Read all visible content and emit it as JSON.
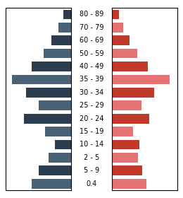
{
  "chart_data": {
    "type": "bar",
    "orientation": "horizontal",
    "tick_labels": "y",
    "categories": [
      "80 - 89",
      "70 - 79",
      "60 - 69",
      "50 - 59",
      "40 - 49",
      "35 - 39",
      "30 - 34",
      "25 - 29",
      "20 - 24",
      "15 - 19",
      "10 - 14",
      "2 - 5",
      "5 - 9",
      "0.4"
    ],
    "series": [
      {
        "values": [
          1.0,
          1.6,
          2.4,
          3.4,
          4.8,
          7.2,
          5.5,
          4.0,
          5.8,
          3.2,
          2.0,
          2.8,
          4.0,
          4.8
        ],
        "colors": [
          "#2b3d4f",
          "#4a6275",
          "#2b3d4f",
          "#4a6275",
          "#2b3d4f",
          "#4a6275",
          "#2b3d4f",
          "#4a6275",
          "#2b3d4f",
          "#4a6275",
          "#2b3d4f",
          "#4a6275",
          "#2b3d4f",
          "#4a6275"
        ]
      },
      {
        "values": [
          0.9,
          1.4,
          2.2,
          3.1,
          4.4,
          7.0,
          5.2,
          3.6,
          4.6,
          2.6,
          3.4,
          3.2,
          3.7,
          4.2
        ],
        "colors": [
          "#c0392b",
          "#e57373",
          "#c0392b",
          "#e57373",
          "#c0392b",
          "#e57373",
          "#c0392b",
          "#e57373",
          "#c0392b",
          "#e57373",
          "#c0392b",
          "#e57373",
          "#c0392b",
          "#e57373"
        ]
      }
    ],
    "xlim": [
      0,
      8
    ]
  }
}
